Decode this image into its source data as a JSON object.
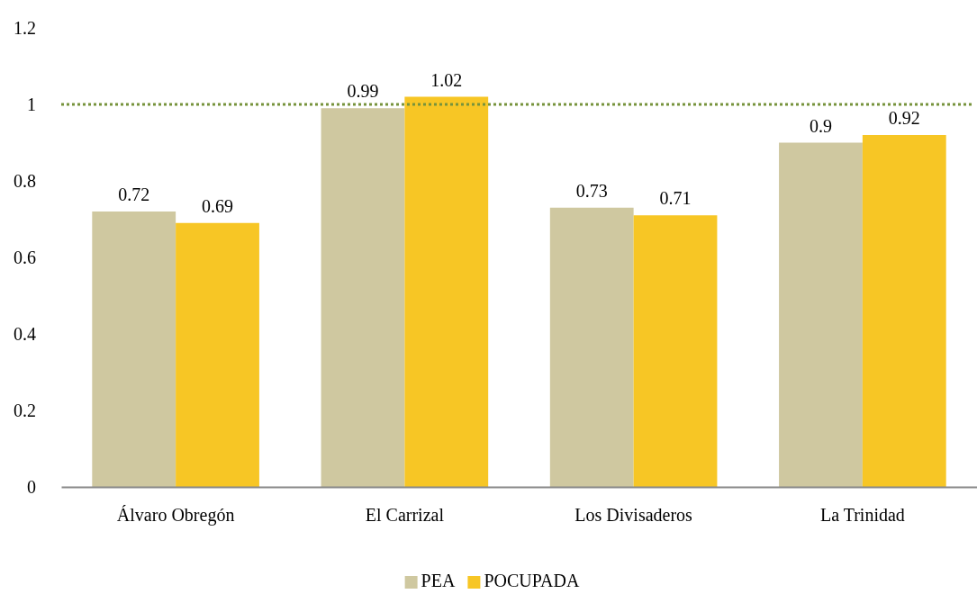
{
  "chart_data": {
    "type": "bar",
    "categories": [
      "Álvaro Obregón",
      "El Carrizal",
      "Los Divisaderos",
      "La Trinidad"
    ],
    "series": [
      {
        "name": "PEA",
        "color": "#cfc8a0",
        "values": [
          0.72,
          0.99,
          0.73,
          0.9
        ]
      },
      {
        "name": "POCUPADA",
        "color": "#f7c625",
        "values": [
          0.69,
          1.02,
          0.71,
          0.92
        ]
      }
    ],
    "ylim": [
      0,
      1.2
    ],
    "yticks": [
      0,
      0.2,
      0.4,
      0.6,
      0.8,
      1,
      1.2
    ],
    "grid": false,
    "legend": "bottom",
    "data_labels": true,
    "ref_lines": [
      {
        "axis": "y",
        "value": 1,
        "color": "#77933c",
        "line_style": "dotted"
      }
    ]
  }
}
